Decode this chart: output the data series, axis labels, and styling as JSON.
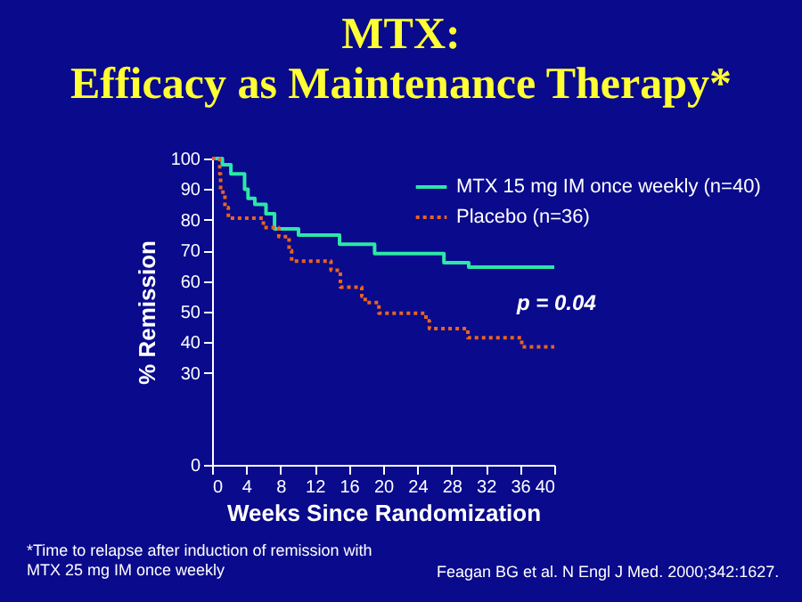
{
  "chart_data": {
    "type": "step",
    "title": "MTX:\nEfficacy as Maintenance Therapy*",
    "xlabel": "Weeks Since Randomization",
    "ylabel": "% Remission",
    "xlim": [
      0,
      40
    ],
    "xticks": [
      0,
      4,
      8,
      12,
      16,
      20,
      24,
      28,
      32,
      36,
      40
    ],
    "ylim": [
      0,
      100
    ],
    "yticks": [
      0,
      30,
      40,
      50,
      60,
      70,
      80,
      90,
      100
    ],
    "grid": false,
    "legend": "top right",
    "series": [
      {
        "name": "MTX 15 mg IM once weekly (n=40)",
        "color": "#2ee6a8",
        "line_style": "solid",
        "x": [
          0,
          1.2,
          2.2,
          3.8,
          4.2,
          5.0,
          6.3,
          7.3,
          10.1,
          14.9,
          19.0,
          27.1,
          30.0,
          40
        ],
        "values": [
          100,
          98,
          95,
          90,
          87,
          85,
          82,
          77,
          75,
          72,
          69,
          66,
          64.5,
          64.5
        ]
      },
      {
        "name": "Placebo (n=36)",
        "color": "#e8641e",
        "line_style": "dotted",
        "x": [
          0,
          0.9,
          1.0,
          1.5,
          1.9,
          6.0,
          7.8,
          9.0,
          9.3,
          13.9,
          15.0,
          17.5,
          17.9,
          19.5,
          25.0,
          25.4,
          29.9,
          36.2,
          40
        ],
        "values": [
          100,
          95,
          89,
          84,
          80.5,
          77.5,
          74.5,
          70,
          66.5,
          63.5,
          58,
          55,
          53,
          49.5,
          47,
          44.5,
          41.5,
          38.5,
          38.5
        ]
      }
    ],
    "annotations": [
      "p = 0.04",
      "*Time to relapse after induction of remission with\n MTX 25 mg IM once weekly",
      "Feagan BG et al. N Engl J Med. 2000;342:1627."
    ]
  }
}
